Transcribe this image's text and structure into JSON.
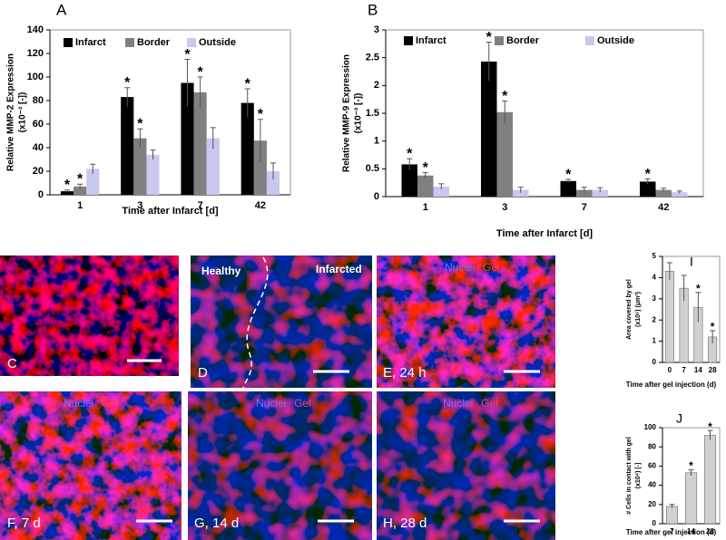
{
  "chart_data": [
    {
      "type": "bar",
      "panel_label": "A",
      "ylabel": [
        "Relative MMP-2 Expression",
        "(x10⁻³ [-])"
      ],
      "xlabel": "Time after Infarct [d]",
      "categories": [
        "1",
        "3",
        "7",
        "42"
      ],
      "ylim": [
        0,
        140
      ],
      "yticks": [
        0,
        20,
        40,
        60,
        80,
        100,
        120,
        140
      ],
      "series": [
        {
          "name": "Infarct",
          "color": "#000000",
          "values": [
            3,
            83,
            95,
            78
          ],
          "errors": [
            1,
            8,
            20,
            12
          ],
          "significance": [
            "*",
            "*",
            "*",
            "*"
          ]
        },
        {
          "name": "Border",
          "color": "#808080",
          "values": [
            7,
            48,
            87,
            46
          ],
          "errors": [
            2,
            8,
            13,
            18
          ],
          "significance": [
            "*",
            "*",
            "*",
            "*"
          ]
        },
        {
          "name": "Outside",
          "color": "#c8c8f0",
          "values": [
            22,
            34,
            48,
            20
          ],
          "errors": [
            4,
            4,
            9,
            7
          ],
          "significance": [
            null,
            null,
            null,
            null
          ]
        }
      ]
    },
    {
      "type": "bar",
      "panel_label": "B",
      "ylabel": [
        "Relative MMP-9 Expression",
        "(x10⁻³ [-])"
      ],
      "xlabel": "Time after Infarct  [d]",
      "categories": [
        "1",
        "3",
        "7",
        "42"
      ],
      "ylim": [
        0,
        3
      ],
      "yticks": [
        0,
        0.5,
        1,
        1.5,
        2,
        2.5,
        3
      ],
      "series": [
        {
          "name": "Infarct",
          "color": "#000000",
          "values": [
            0.58,
            2.43,
            0.28,
            0.27
          ],
          "errors": [
            0.1,
            0.35,
            0.03,
            0.05
          ],
          "significance": [
            "*",
            "*",
            "*",
            "*"
          ]
        },
        {
          "name": "Border",
          "color": "#808080",
          "values": [
            0.38,
            1.52,
            0.12,
            0.12
          ],
          "errors": [
            0.05,
            0.2,
            0.05,
            0.03
          ],
          "significance": [
            "*",
            "*",
            null,
            null
          ]
        },
        {
          "name": "Outside",
          "color": "#c8c8f0",
          "values": [
            0.18,
            0.12,
            0.12,
            0.08
          ],
          "errors": [
            0.05,
            0.05,
            0.04,
            0.02
          ],
          "significance": [
            null,
            null,
            null,
            null
          ]
        }
      ]
    },
    {
      "type": "bar",
      "panel_label": "I",
      "ylabel": [
        "Area covered by gel",
        "(x10⁶) (μm²)"
      ],
      "xlabel": "Time after gel injection (d)",
      "categories": [
        "0",
        "7",
        "14",
        "28"
      ],
      "ylim": [
        0,
        5
      ],
      "yticks": [
        0,
        1,
        2,
        3,
        4,
        5
      ],
      "color": "#d0d0d0",
      "values": [
        4.3,
        3.5,
        2.6,
        1.2
      ],
      "errors": [
        0.4,
        0.6,
        0.7,
        0.3
      ],
      "significance": [
        null,
        null,
        "*",
        "*"
      ]
    },
    {
      "type": "bar",
      "panel_label": "J",
      "ylabel": [
        "# Cells in contact with gel",
        "(x10⁴) [-]"
      ],
      "xlabel": "Time after gel injection (d)",
      "categories": [
        "7",
        "14",
        "28"
      ],
      "ylim": [
        0,
        100
      ],
      "yticks": [
        0,
        20,
        40,
        60,
        80,
        100
      ],
      "color": "#d0d0d0",
      "values": [
        18,
        53,
        92
      ],
      "errors": [
        2,
        3,
        5
      ],
      "significance": [
        null,
        "*",
        "*"
      ]
    }
  ],
  "panels": [
    {
      "label": "C"
    },
    {
      "label": "D",
      "left": "Healthy",
      "right": "Infarcted"
    },
    {
      "label": "E, 24 h",
      "nuclei": "Nuclei",
      "gel": "Gel"
    },
    {
      "label": "F, 7 d",
      "nuclei": "Nuclei",
      "gel": "Gel"
    },
    {
      "label": "G, 14 d",
      "nuclei": "Nuclei",
      "gel": "Gel"
    },
    {
      "label": "H, 28 d",
      "nuclei": "Nuclei",
      "gel": "Gel"
    }
  ]
}
